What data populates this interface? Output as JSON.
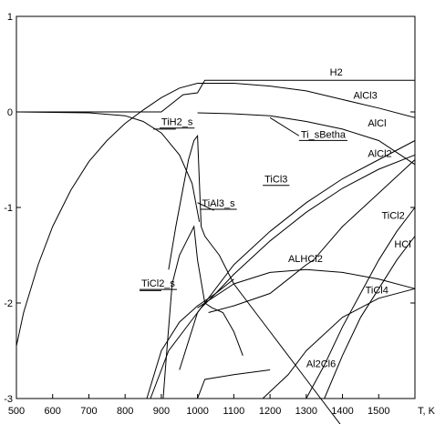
{
  "chart_data": {
    "type": "line",
    "xlabel": "T, K",
    "xlim": [
      500,
      1600
    ],
    "ylim": [
      -3,
      1
    ],
    "x_ticks": [
      500,
      600,
      700,
      800,
      900,
      1000,
      1100,
      1200,
      1300,
      1400,
      1500
    ],
    "y_ticks": [
      1,
      0,
      -1,
      -2,
      -3
    ],
    "grid": false,
    "series": [
      {
        "name": "H2",
        "label_at": [
          1365,
          0.38
        ],
        "underline": false,
        "x": [
          500,
          700,
          900,
          960,
          1000,
          1020,
          1600
        ],
        "y": [
          0.0,
          0.0,
          0.0,
          0.18,
          0.2,
          0.33,
          0.33
        ]
      },
      {
        "name": "AlCl3",
        "label_at": [
          1430,
          0.14
        ],
        "underline": false,
        "x": [
          500,
          520,
          560,
          600,
          650,
          700,
          750,
          800,
          850,
          900,
          950,
          1000,
          1100,
          1200,
          1300,
          1400,
          1500,
          1600
        ],
        "y": [
          -2.45,
          -2.1,
          -1.6,
          -1.2,
          -0.82,
          -0.52,
          -0.3,
          -0.12,
          0.02,
          0.15,
          0.25,
          0.3,
          0.3,
          0.27,
          0.22,
          0.13,
          0.04,
          -0.06
        ]
      },
      {
        "name": "AlCl",
        "label_at": [
          1470,
          -0.15
        ],
        "underline": false,
        "x": [
          1000,
          1100,
          1200,
          1300,
          1400,
          1500,
          1600
        ],
        "y": [
          -0.01,
          -0.02,
          -0.04,
          -0.1,
          -0.18,
          -0.3,
          -0.55
        ]
      },
      {
        "name": "Ti_sBetha",
        "label_at": [
          1285,
          -0.27
        ],
        "underline": true,
        "leader": [
          [
            1200,
            -0.06
          ],
          [
            1280,
            -0.25
          ]
        ],
        "x": [
          1030,
          1100,
          1200,
          1250,
          1300,
          1320,
          1400,
          1500,
          1600
        ],
        "y": [
          -2.1,
          -2.03,
          -1.9,
          -1.75,
          -1.6,
          -1.55,
          -1.2,
          -0.85,
          -0.5
        ]
      },
      {
        "name": "AlCl2",
        "label_at": [
          1470,
          -0.47
        ],
        "underline": false,
        "x": [
          950,
          1000,
          1100,
          1200,
          1300,
          1400,
          1500,
          1600
        ],
        "y": [
          -2.7,
          -2.1,
          -1.6,
          -1.25,
          -0.95,
          -0.7,
          -0.5,
          -0.3
        ]
      },
      {
        "name": "TiCl3",
        "label_at": [
          1185,
          -0.74
        ],
        "underline": true,
        "x": [
          1010,
          1050,
          1100,
          1200,
          1300,
          1400,
          1500,
          1600
        ],
        "y": [
          -2.05,
          -1.9,
          -1.7,
          -1.35,
          -1.05,
          -0.8,
          -0.6,
          -0.45
        ]
      },
      {
        "name": "TiH2_s",
        "label_at": [
          900,
          -0.14
        ],
        "underline": true,
        "leader": [
          [
            878,
            -0.18
          ],
          [
            940,
            -0.18
          ]
        ],
        "x": [
          500,
          700,
          800,
          850,
          900,
          950,
          985,
          1005
        ],
        "y": [
          0.0,
          -0.01,
          -0.04,
          -0.1,
          -0.22,
          -0.45,
          -0.75,
          -1.15
        ]
      },
      {
        "name": "TiAl3_s",
        "label_at": [
          1012,
          -0.99
        ],
        "underline": true,
        "leader": [
          [
            1000,
            -0.95
          ],
          [
            1045,
            -1.03
          ]
        ],
        "x": [
          920,
          940,
          960,
          975,
          990,
          1000,
          1010,
          1020,
          1040,
          1060,
          1100,
          1200,
          1300,
          1400
        ],
        "y": [
          -1.65,
          -1.2,
          -0.8,
          -0.5,
          -0.3,
          -0.25,
          -1.2,
          -1.3,
          -1.4,
          -1.5,
          -1.8,
          -2.3,
          -2.8,
          -3.3
        ]
      },
      {
        "name": "TiCl2_s",
        "label_at": [
          845,
          -1.83
        ],
        "underline": true,
        "leader": [
          [
            840,
            -1.87
          ],
          [
            900,
            -1.87
          ]
        ],
        "x": [
          905,
          915,
          930,
          950,
          970,
          990,
          1000,
          1020,
          1040,
          1070,
          1100,
          1125
        ],
        "y": [
          -3.0,
          -2.5,
          -1.8,
          -1.5,
          -1.35,
          -1.2,
          -1.55,
          -2.0,
          -2.05,
          -2.1,
          -2.3,
          -2.55
        ]
      },
      {
        "name": "ALHCl2",
        "label_at": [
          1250,
          -1.57
        ],
        "underline": false,
        "x": [
          1000,
          1100,
          1200,
          1300,
          1400,
          1500,
          1600
        ],
        "y": [
          -2.05,
          -1.8,
          -1.68,
          -1.65,
          -1.68,
          -1.75,
          -1.85
        ]
      },
      {
        "name": "TiCl2",
        "label_at": [
          1508,
          -1.12
        ],
        "underline": false,
        "x": [
          1300,
          1350,
          1400,
          1450,
          1500,
          1550,
          1600
        ],
        "y": [
          -3.0,
          -2.65,
          -2.25,
          -1.9,
          -1.55,
          -1.25,
          -1.0
        ]
      },
      {
        "name": "HCl",
        "label_at": [
          1543,
          -1.42
        ],
        "underline": false,
        "x": [
          1350,
          1400,
          1450,
          1500,
          1550,
          1600
        ],
        "y": [
          -3.0,
          -2.55,
          -2.15,
          -1.85,
          -1.55,
          -1.3
        ]
      },
      {
        "name": "TiCl4",
        "label_at": [
          1463,
          -1.9
        ],
        "underline": false,
        "x": [
          1180,
          1250,
          1300,
          1400,
          1500,
          1600
        ],
        "y": [
          -3.0,
          -2.75,
          -2.5,
          -2.15,
          -1.95,
          -1.85
        ]
      },
      {
        "name": "Al2Cl6",
        "label_at": [
          1300,
          -2.67
        ],
        "underline": false,
        "x": [
          860,
          900,
          950,
          1000,
          1050,
          1100
        ],
        "y": [
          -3.0,
          -2.5,
          -2.2,
          -2.03,
          -1.9,
          -1.75
        ]
      },
      {
        "name": "",
        "label_at": null,
        "underline": false,
        "x": [
          1000,
          1020,
          1100,
          1200
        ],
        "y": [
          -3.0,
          -2.8,
          -2.75,
          -2.7
        ]
      },
      {
        "name": "",
        "label_at": null,
        "underline": false,
        "x": [
          870,
          920,
          980,
          1020
        ],
        "y": [
          -3.0,
          -2.5,
          -2.2,
          -2.0
        ]
      }
    ]
  }
}
